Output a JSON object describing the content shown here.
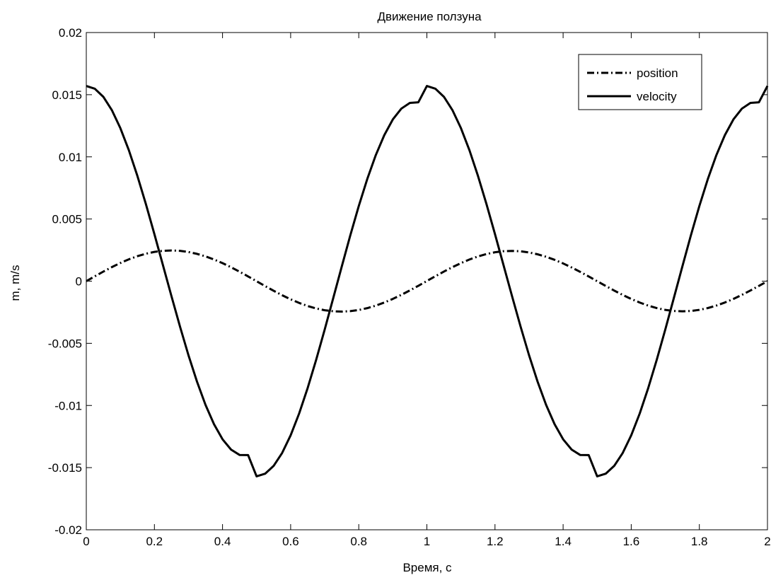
{
  "chart_data": {
    "type": "line",
    "title": "Движение ползуна",
    "xlabel": "Время, с",
    "ylabel": "m, m/s",
    "xlim": [
      0,
      2
    ],
    "ylim": [
      -0.02,
      0.02
    ],
    "x_ticks": [
      0,
      0.2,
      0.4,
      0.6,
      0.8,
      1,
      1.2,
      1.4,
      1.6,
      1.8,
      2
    ],
    "x_tick_labels": [
      "0",
      "0.2",
      "0.4",
      "0.6",
      "0.8",
      "1",
      "1.2",
      "1.4",
      "1.6",
      "1.8",
      "2"
    ],
    "y_ticks": [
      -0.02,
      -0.015,
      -0.01,
      -0.005,
      0,
      0.005,
      0.01,
      0.015,
      0.02
    ],
    "y_tick_labels": [
      "-0.02",
      "-0.015",
      "-0.01",
      "-0.005",
      "0",
      "0.005",
      "0.01",
      "0.015",
      "0.02"
    ],
    "grid": false,
    "legend_position": "top-right",
    "x": [
      0,
      0.025,
      0.05,
      0.075,
      0.1,
      0.125,
      0.15,
      0.175,
      0.2,
      0.225,
      0.25,
      0.275,
      0.3,
      0.325,
      0.35,
      0.375,
      0.4,
      0.425,
      0.45,
      0.475,
      0.5,
      0.525,
      0.55,
      0.575,
      0.6,
      0.625,
      0.65,
      0.675,
      0.7,
      0.725,
      0.75,
      0.775,
      0.8,
      0.825,
      0.85,
      0.875,
      0.9,
      0.925,
      0.95,
      0.975,
      1,
      1.025,
      1.05,
      1.075,
      1.1,
      1.125,
      1.15,
      1.175,
      1.2,
      1.225,
      1.25,
      1.275,
      1.3,
      1.325,
      1.35,
      1.375,
      1.4,
      1.425,
      1.45,
      1.475,
      1.5,
      1.525,
      1.55,
      1.575,
      1.6,
      1.625,
      1.65,
      1.675,
      1.7,
      1.725,
      1.75,
      1.775,
      1.8,
      1.825,
      1.85,
      1.875,
      1.9,
      1.925,
      1.95,
      1.975,
      2
    ],
    "series": [
      {
        "name": "position",
        "style": "dashdot",
        "values": [
          0,
          0.000389,
          0.000768,
          0.001129,
          0.001461,
          0.001757,
          0.002008,
          0.002209,
          0.002355,
          0.002443,
          0.00247,
          0.002438,
          0.002346,
          0.002197,
          0.001995,
          0.001744,
          0.00145,
          0.00112,
          0.000761,
          0.000383,
          -6e-06,
          -0.000395,
          -0.000773,
          -0.001131,
          -0.00146,
          -0.001752,
          -0.002,
          -0.002197,
          -0.002339,
          -0.002423,
          -0.002448,
          -0.002413,
          -0.002319,
          -0.00217,
          -0.001968,
          -0.001719,
          -0.001427,
          -0.0011,
          -0.000745,
          -0.000371,
          1.3e-05,
          0.000397,
          0.000772,
          0.001126,
          0.001452,
          0.001742,
          0.001988,
          0.002183,
          0.002325,
          0.002409,
          0.002435,
          0.002401,
          0.002309,
          0.002162,
          0.001962,
          0.001716,
          0.001427,
          0.001102,
          0.000749,
          0.000378,
          -4e-06,
          -0.000385,
          -0.000756,
          -0.001108,
          -0.001433,
          -0.001721,
          -0.001968,
          -0.002166,
          -0.002311,
          -0.002399,
          -0.002428,
          -0.002398,
          -0.002308,
          -0.002162,
          -0.001963,
          -0.001717,
          -0.001428,
          -0.001103,
          -0.00075,
          -0.000378,
          0
        ]
      },
      {
        "name": "velocity",
        "style": "solid",
        "values": [
          0.0157,
          0.01548,
          0.01483,
          0.01376,
          0.01231,
          0.01053,
          0.00847,
          0.0062,
          0.00378,
          0.00129,
          -0.0012,
          -0.00364,
          -0.00596,
          -0.00808,
          -0.00995,
          -0.01151,
          -0.01272,
          -0.01355,
          -0.01398,
          -0.01399,
          -0.0157,
          -0.01549,
          -0.01486,
          -0.01382,
          -0.0124,
          -0.01064,
          -0.00859,
          -0.00632,
          -0.00389,
          -0.00137,
          0.00117,
          0.00367,
          0.00604,
          0.00822,
          0.01014,
          0.01175,
          0.01301,
          0.01388,
          0.01434,
          0.01439,
          0.0157,
          0.01548,
          0.01483,
          0.01376,
          0.01231,
          0.01053,
          0.00847,
          0.0062,
          0.00378,
          0.00129,
          -0.0012,
          -0.00364,
          -0.00596,
          -0.00808,
          -0.00995,
          -0.01151,
          -0.01272,
          -0.01355,
          -0.01398,
          -0.01399,
          -0.0157,
          -0.01549,
          -0.01486,
          -0.01382,
          -0.0124,
          -0.01064,
          -0.00859,
          -0.00632,
          -0.00389,
          -0.00137,
          0.00117,
          0.00367,
          0.00604,
          0.00822,
          0.01014,
          0.01175,
          0.01301,
          0.01388,
          0.01434,
          0.01439,
          0.0157
        ]
      }
    ]
  }
}
